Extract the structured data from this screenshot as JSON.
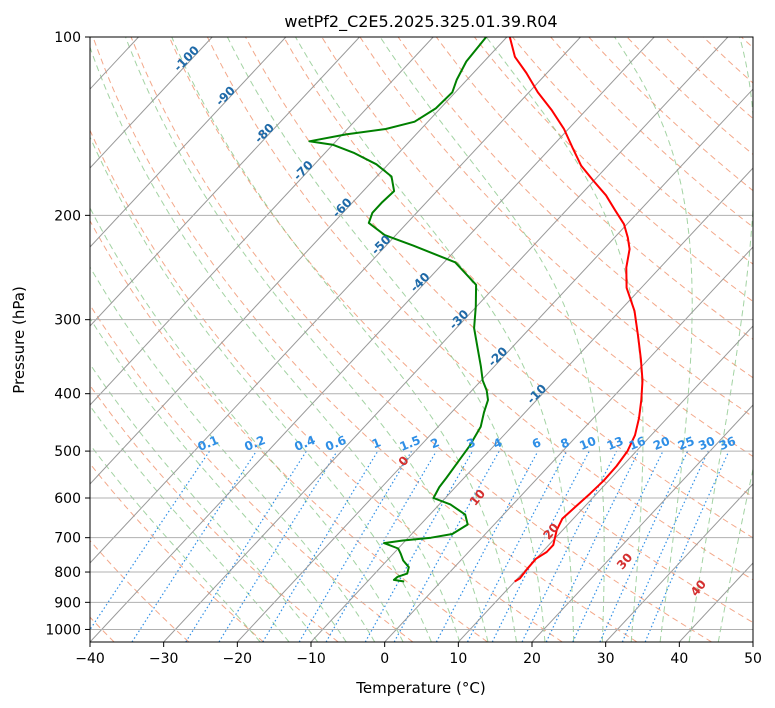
{
  "chart_data": {
    "type": "line",
    "title": "wetPf2_C2E5.2025.325.01.39.R04",
    "xlabel": "Temperature (°C)",
    "ylabel": "Pressure (hPa)",
    "xlim": [
      -40,
      50
    ],
    "ylim": [
      1050,
      100
    ],
    "y_scale": "log",
    "grid": true,
    "x_ticks": [
      -40,
      -30,
      -20,
      -10,
      0,
      10,
      20,
      30,
      40,
      50
    ],
    "x_tick_labels": [
      "−40",
      "−30",
      "−20",
      "−10",
      "0",
      "10",
      "20",
      "30",
      "40",
      "50"
    ],
    "y_ticks": [
      100,
      200,
      300,
      400,
      500,
      600,
      700,
      800,
      900,
      1000
    ],
    "y_tick_labels": [
      "100",
      "200",
      "300",
      "400",
      "500",
      "600",
      "700",
      "800",
      "900",
      "1000"
    ],
    "skew_deg_per_decade": 75,
    "colors": {
      "temperature": "#ff0000",
      "dewpoint": "#008000",
      "isotherm": "#999999",
      "dry_adiabat": "#f3a88a",
      "moist_adiabat": "#7cc07c",
      "mixing_ratio": "#2f8fe6",
      "grid": "#b0b0b0"
    },
    "series": [
      {
        "role": "temperature",
        "points": [
          [
            10.0,
            830
          ],
          [
            10.3,
            820
          ],
          [
            10.1,
            790
          ],
          [
            10.0,
            760
          ],
          [
            10.6,
            740
          ],
          [
            10.6,
            720
          ],
          [
            9.2,
            680
          ],
          [
            8.5,
            650
          ],
          [
            8.8,
            620
          ],
          [
            9.1,
            590
          ],
          [
            9.3,
            560
          ],
          [
            9.2,
            530
          ],
          [
            8.8,
            500
          ],
          [
            7.8,
            470
          ],
          [
            6.2,
            440
          ],
          [
            4.2,
            410
          ],
          [
            1.9,
            380
          ],
          [
            -1.0,
            350
          ],
          [
            -4.3,
            320
          ],
          [
            -8.0,
            290
          ],
          [
            -12.0,
            265
          ],
          [
            -14.6,
            245
          ],
          [
            -16.5,
            228
          ],
          [
            -18.2,
            218
          ],
          [
            -20.4,
            207
          ],
          [
            -23.4,
            196
          ],
          [
            -26.5,
            185
          ],
          [
            -30.0,
            175
          ],
          [
            -33.6,
            165
          ],
          [
            -37.0,
            154
          ],
          [
            -40.6,
            143
          ],
          [
            -44.6,
            133
          ],
          [
            -48.8,
            124
          ],
          [
            -52.8,
            115
          ],
          [
            -56.4,
            108
          ],
          [
            -59.6,
            100
          ]
        ]
      },
      {
        "role": "dewpoint",
        "points": [
          [
            -5.0,
            830
          ],
          [
            -6.6,
            825
          ],
          [
            -6.5,
            815
          ],
          [
            -5.6,
            805
          ],
          [
            -6.2,
            785
          ],
          [
            -7.8,
            765
          ],
          [
            -9.0,
            745
          ],
          [
            -10.0,
            730
          ],
          [
            -12.6,
            715
          ],
          [
            -10.5,
            708
          ],
          [
            -6.9,
            700
          ],
          [
            -4.5,
            690
          ],
          [
            -3.6,
            665
          ],
          [
            -5.2,
            640
          ],
          [
            -8.5,
            615
          ],
          [
            -11.6,
            600
          ],
          [
            -12.2,
            575
          ],
          [
            -12.4,
            555
          ],
          [
            -12.8,
            525
          ],
          [
            -13.3,
            490
          ],
          [
            -14.2,
            455
          ],
          [
            -15.6,
            430
          ],
          [
            -16.6,
            410
          ],
          [
            -18.0,
            395
          ],
          [
            -19.8,
            380
          ],
          [
            -21.8,
            360
          ],
          [
            -24.6,
            335
          ],
          [
            -27.6,
            310
          ],
          [
            -30.1,
            285
          ],
          [
            -32.8,
            262
          ],
          [
            -38.5,
            240
          ],
          [
            -46.3,
            225
          ],
          [
            -51.5,
            216
          ],
          [
            -55.2,
            206
          ],
          [
            -56.0,
            198
          ],
          [
            -56.0,
            190
          ],
          [
            -55.8,
            182
          ],
          [
            -58.0,
            172
          ],
          [
            -61.6,
            164
          ],
          [
            -66.0,
            157
          ],
          [
            -70.0,
            152
          ],
          [
            -73.6,
            150
          ],
          [
            -69.5,
            146
          ],
          [
            -64.8,
            143
          ],
          [
            -61.8,
            139
          ],
          [
            -60.6,
            132
          ],
          [
            -60.4,
            124
          ],
          [
            -61.4,
            118
          ],
          [
            -62.4,
            110
          ],
          [
            -62.8,
            100
          ]
        ]
      }
    ],
    "isotherm_labels": [
      "-100",
      "-90",
      "-80",
      "-70",
      "-60",
      "-50",
      "-40",
      "-30",
      "-20",
      "-10"
    ],
    "isotherm_label_values": [
      -100,
      -90,
      -80,
      -70,
      -60,
      -50,
      -40,
      -30,
      -20,
      -10
    ],
    "mixing_ratio_labels": [
      "0.1",
      "0.2",
      "0.4",
      "0.6",
      "1",
      "1.5",
      "2",
      "3",
      "4",
      "6",
      "8",
      "10",
      "13",
      "16",
      "20",
      "25",
      "30",
      "36"
    ],
    "mixing_ratio_values": [
      0.1,
      0.2,
      0.4,
      0.6,
      1,
      1.5,
      2,
      3,
      4,
      6,
      8,
      10,
      13,
      16,
      20,
      25,
      30,
      36
    ],
    "moist_adiabat_labels": [
      "0",
      "10",
      "20",
      "30",
      "40"
    ],
    "moist_adiabat_values": [
      0,
      10,
      20,
      30,
      40
    ]
  }
}
